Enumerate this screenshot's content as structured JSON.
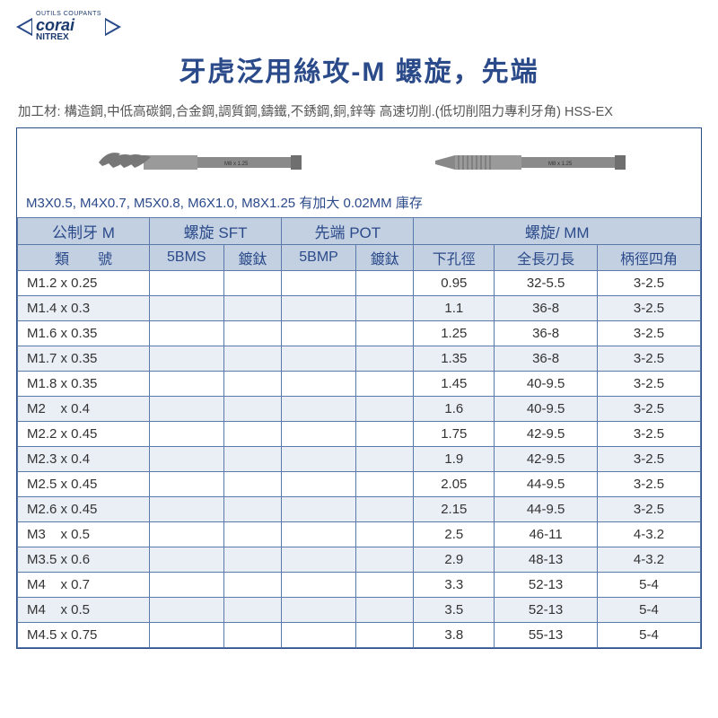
{
  "logo": {
    "line1": "OUTILS COUPANTS",
    "line2": "corai",
    "line3": "NITREX",
    "tri_color": "#2b4a8a"
  },
  "title": "牙虎泛用絲攻-M  螺旋，先端",
  "subtitle": "加工材: 構造鋼,中低高碳鋼,合金鋼,調質鋼,鑄鐵,不銹鋼,銅,鋅等 高速切削.(低切削阻力專利牙角) HSS-EX",
  "note": "M3X0.5, M4X0.7, M5X0.8, M6X1.0, M8X1.25 有加大 0.02MM 庫存",
  "header1": {
    "c1": "公制牙 M",
    "c2": "螺旋 SFT",
    "c3": "先端 POT",
    "c4": "螺旋/ MM"
  },
  "header2": {
    "c1": "類　　號",
    "c2": "5BMS",
    "c3": "鍍鈦",
    "c4": "5BMP",
    "c5": "鍍鈦",
    "c6": "下孔徑",
    "c7": "全長刃長",
    "c8": "柄徑四角"
  },
  "rows": [
    {
      "sz": "M1.2 x 0.25",
      "hole": "0.95",
      "len": "32-5.5",
      "shank": "3-2.5",
      "sep": false
    },
    {
      "sz": "M1.4 x 0.3",
      "hole": "1.1",
      "len": "36-8",
      "shank": "3-2.5",
      "sep": false
    },
    {
      "sz": "M1.6 x 0.35",
      "hole": "1.25",
      "len": "36-8",
      "shank": "3-2.5",
      "sep": false
    },
    {
      "sz": "M1.7 x 0.35",
      "hole": "1.35",
      "len": "36-8",
      "shank": "3-2.5",
      "sep": false
    },
    {
      "sz": "M1.8 x 0.35",
      "hole": "1.45",
      "len": "40-9.5",
      "shank": "3-2.5",
      "sep": false
    },
    {
      "sz": "M2    x 0.4",
      "hole": "1.6",
      "len": "40-9.5",
      "shank": "3-2.5",
      "sep": true
    },
    {
      "sz": "M2.2 x 0.45",
      "hole": "1.75",
      "len": "42-9.5",
      "shank": "3-2.5",
      "sep": false
    },
    {
      "sz": "M2.3 x 0.4",
      "hole": "1.9",
      "len": "42-9.5",
      "shank": "3-2.5",
      "sep": false
    },
    {
      "sz": "M2.5 x 0.45",
      "hole": "2.05",
      "len": "44-9.5",
      "shank": "3-2.5",
      "sep": false
    },
    {
      "sz": "M2.6 x 0.45",
      "hole": "2.15",
      "len": "44-9.5",
      "shank": "3-2.5",
      "sep": false
    },
    {
      "sz": "M3    x 0.5",
      "hole": "2.5",
      "len": "46-11",
      "shank": "4-3.2",
      "sep": true
    },
    {
      "sz": "M3.5 x 0.6",
      "hole": "2.9",
      "len": "48-13",
      "shank": "4-3.2",
      "sep": false
    },
    {
      "sz": "M4    x 0.7",
      "hole": "3.3",
      "len": "52-13",
      "shank": "5-4",
      "sep": false
    },
    {
      "sz": "M4    x 0.5",
      "hole": "3.5",
      "len": "52-13",
      "shank": "5-4",
      "sep": false
    },
    {
      "sz": "M4.5 x 0.75",
      "hole": "3.8",
      "len": "55-13",
      "shank": "5-4",
      "sep": false
    }
  ],
  "colors": {
    "border": "#2b4a8a",
    "header_bg": "#c3d0e2",
    "row_alt": "#eaeef5"
  }
}
